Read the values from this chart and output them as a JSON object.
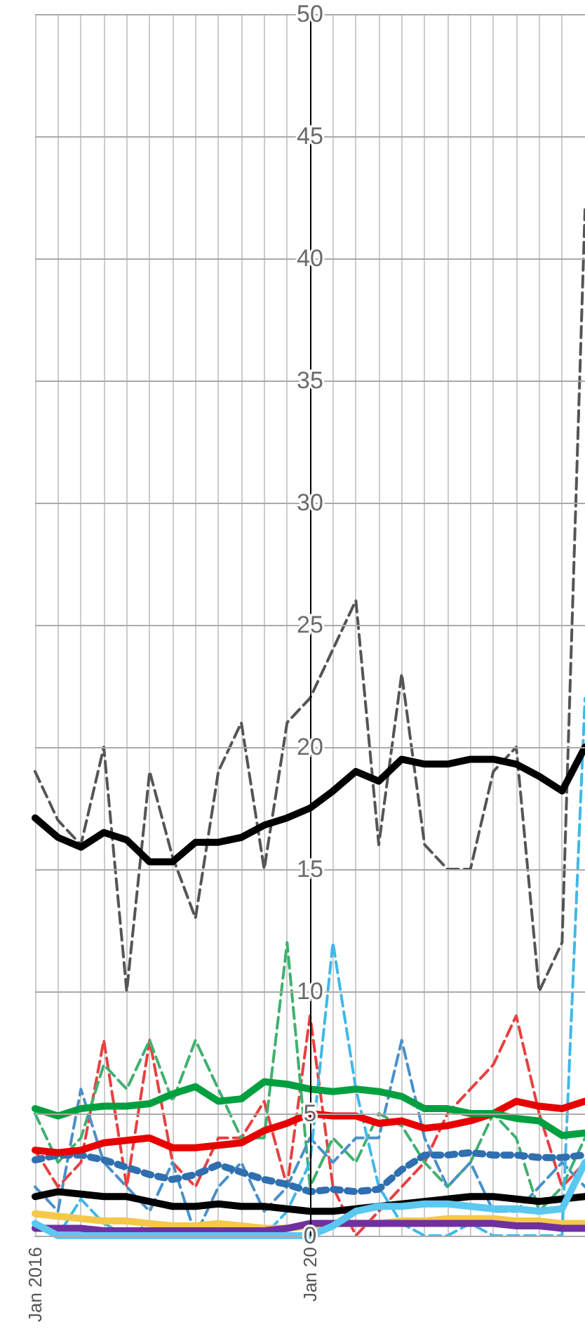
{
  "chart_data": {
    "type": "line",
    "categories": [
      "Jan 2016",
      null,
      null,
      null,
      null,
      null,
      null,
      null,
      null,
      null,
      null,
      null,
      "Jan 20",
      null,
      null,
      null,
      null,
      null,
      null,
      null,
      null,
      null,
      null,
      null,
      null
    ],
    "ylim": [
      0,
      50
    ],
    "yticks": [
      0,
      5,
      10,
      15,
      20,
      25,
      30,
      35,
      40,
      45,
      50
    ],
    "grid": true,
    "series": [
      {
        "color": "#555555",
        "line_style": "dashed",
        "values": [
          19,
          17,
          16,
          20,
          10,
          19,
          15.5,
          13,
          19,
          21,
          15,
          21,
          22,
          24,
          26,
          16,
          23,
          16,
          15,
          15,
          19,
          20,
          10,
          12,
          42
        ]
      },
      {
        "color": "#e84040",
        "line_style": "dashed",
        "values": [
          3.5,
          2,
          3,
          8,
          2,
          8,
          3,
          2,
          4,
          4,
          5.5,
          2,
          9,
          2,
          0,
          1,
          2,
          3,
          5,
          6,
          7,
          9,
          5,
          2,
          3
        ]
      },
      {
        "color": "#40b070",
        "line_style": "dashed",
        "values": [
          5,
          3,
          4,
          7,
          6,
          8,
          5.5,
          8,
          6,
          4,
          4,
          12,
          2,
          4,
          3,
          5,
          4.5,
          3,
          2,
          3,
          5,
          4,
          1,
          2,
          4
        ]
      },
      {
        "color": "#4a90c8",
        "line_style": "dashed",
        "values": [
          2,
          1,
          6,
          3,
          2,
          1,
          3,
          0,
          2,
          3,
          1,
          2,
          4,
          3,
          4,
          4,
          8,
          4,
          2,
          3,
          1,
          1,
          2,
          3,
          2
        ]
      },
      {
        "color": "#40b8e8",
        "line_style": "dashed",
        "values": [
          0.5,
          0,
          1.5,
          0.5,
          0,
          0.5,
          0,
          0.5,
          0,
          0,
          0,
          1,
          3,
          12,
          6,
          2,
          0.5,
          0,
          0,
          0.5,
          0,
          0,
          0,
          0,
          22
        ]
      },
      {
        "color": "#000000",
        "line_style": "solid",
        "values": [
          1.6,
          1.8,
          1.7,
          1.6,
          1.6,
          1.4,
          1.2,
          1.2,
          1.3,
          1.2,
          1.2,
          1.1,
          1.0,
          1.0,
          1.1,
          1.2,
          1.3,
          1.4,
          1.5,
          1.6,
          1.6,
          1.5,
          1.4,
          1.5,
          1.6
        ]
      },
      {
        "color": "#f5c84a",
        "line_style": "solid",
        "values": [
          0.9,
          0.8,
          0.7,
          0.6,
          0.6,
          0.5,
          0.4,
          0.4,
          0.5,
          0.4,
          0.3,
          0.3,
          0.4,
          0.5,
          0.5,
          0.5,
          0.6,
          0.6,
          0.7,
          0.7,
          0.7,
          0.6,
          0.6,
          0.5,
          0.5
        ]
      },
      {
        "color": "#7030a0",
        "line_style": "solid",
        "values": [
          0.3,
          0.3,
          0.3,
          0.2,
          0.2,
          0.2,
          0.2,
          0.2,
          0.2,
          0.2,
          0.2,
          0.3,
          0.5,
          0.5,
          0.5,
          0.5,
          0.5,
          0.5,
          0.5,
          0.5,
          0.5,
          0.4,
          0.4,
          0.3,
          0.3
        ]
      },
      {
        "color": "#5bc8f0",
        "line_style": "solid",
        "values": [
          0.5,
          0,
          0,
          0,
          0,
          0,
          0,
          0,
          0,
          0,
          0,
          0,
          0,
          0.4,
          1.0,
          1.2,
          1.2,
          1.3,
          1.3,
          1.2,
          1.1,
          1.1,
          1.0,
          1.1,
          3
        ]
      },
      {
        "color": "#2f6fb0",
        "line_style": "dotted",
        "values": [
          3.1,
          3.3,
          3.3,
          3.1,
          2.8,
          2.5,
          2.3,
          2.5,
          2.9,
          2.6,
          2.3,
          2.1,
          1.8,
          1.9,
          1.8,
          1.9,
          2.7,
          3.3,
          3.3,
          3.4,
          3.3,
          3.3,
          3.2,
          3.2,
          3.3
        ]
      },
      {
        "color": "#e80000",
        "line_style": "solid",
        "values": [
          3.5,
          3.4,
          3.5,
          3.8,
          3.9,
          4.0,
          3.6,
          3.6,
          3.7,
          3.8,
          4.3,
          4.6,
          5.0,
          4.9,
          4.9,
          4.6,
          4.7,
          4.4,
          4.5,
          4.7,
          5.0,
          5.5,
          5.3,
          5.2,
          5.5
        ]
      },
      {
        "color": "#00a040",
        "line_style": "solid",
        "values": [
          5.2,
          4.9,
          5.2,
          5.3,
          5.3,
          5.4,
          5.8,
          6.1,
          5.5,
          5.6,
          6.3,
          6.2,
          6.0,
          5.9,
          6.0,
          5.9,
          5.7,
          5.2,
          5.2,
          5.0,
          5.0,
          4.8,
          4.7,
          4.1,
          4.2
        ]
      },
      {
        "color": "#000000",
        "line_style": "solid",
        "values": [
          17.1,
          16.3,
          15.9,
          16.5,
          16.2,
          15.3,
          15.3,
          16.1,
          16.1,
          16.3,
          16.8,
          17.1,
          17.5,
          18.2,
          19,
          18.6,
          19.5,
          19.3,
          19.3,
          19.5,
          19.5,
          19.3,
          18.8,
          18.2,
          20
        ]
      }
    ]
  }
}
